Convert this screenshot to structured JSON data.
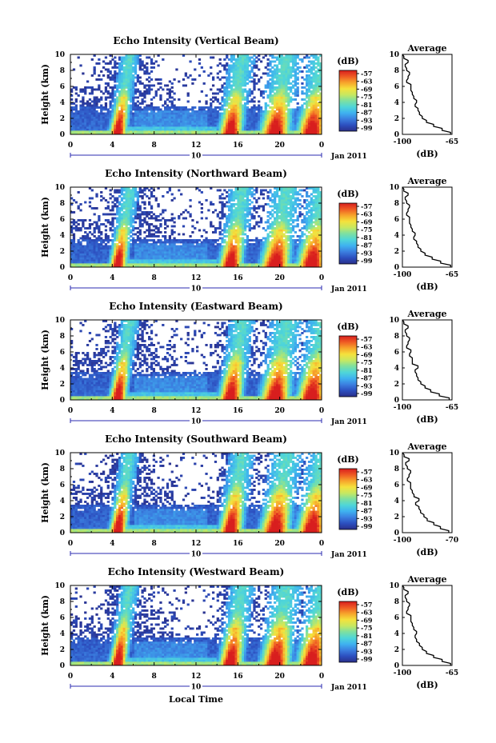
{
  "figure": {
    "x_axis_title": "Local Time",
    "date_label": "Jan 2011",
    "day_label": "10",
    "profile_panel_title": "Average",
    "profile_xlabel": "(dB)",
    "colorbar_unit": "(dB)",
    "colorbar_ticks": [
      "-57",
      "-63",
      "-69",
      "-75",
      "-81",
      "-87",
      "-93",
      "-99"
    ],
    "colorbar_colors": [
      "#2a2f8a",
      "#2c4fbf",
      "#3b7fe0",
      "#3fb2f0",
      "#4fd6d8",
      "#7ee0a0",
      "#c8e860",
      "#f5e13c",
      "#f7a42b",
      "#ef5a24",
      "#d81e1e"
    ]
  },
  "chart_data": [
    {
      "type": "heatmap",
      "title": "Echo Intensity (Vertical Beam)",
      "xlabel": "",
      "ylabel": "Height (km)",
      "x_ticks": [
        "0",
        "4",
        "8",
        "12",
        "16",
        "20",
        "0"
      ],
      "y_ticks": [
        "0",
        "2",
        "4",
        "6",
        "8",
        "10"
      ],
      "xlim": [
        0,
        24
      ],
      "ylim": [
        0,
        10
      ],
      "intense_periods_hours": [
        [
          4,
          5
        ],
        [
          14.5,
          16
        ],
        [
          18.5,
          20.5
        ],
        [
          22,
          24
        ]
      ],
      "profile": {
        "xlabel": "(dB)",
        "x_ticks": [
          "-100",
          "-65"
        ],
        "xlim": [
          -100,
          -65
        ],
        "ylim": [
          0,
          10
        ],
        "height_km": [
          0,
          0.5,
          1,
          1.5,
          2,
          2.5,
          3,
          3.5,
          4,
          4.5,
          5,
          5.5,
          6,
          6.5,
          7,
          7.5,
          8,
          8.5,
          9,
          9.5,
          10
        ],
        "db": [
          -66,
          -72,
          -78,
          -83,
          -86,
          -88,
          -89,
          -91,
          -90,
          -92,
          -93,
          -94,
          -94,
          -97,
          -96,
          -95,
          -97,
          -98,
          -96,
          -99,
          -100
        ]
      }
    },
    {
      "type": "heatmap",
      "title": "Echo Intensity (Northward Beam)",
      "xlabel": "",
      "ylabel": "Height (km)",
      "x_ticks": [
        "0",
        "4",
        "8",
        "12",
        "16",
        "20",
        "0"
      ],
      "y_ticks": [
        "0",
        "2",
        "4",
        "6",
        "8",
        "10"
      ],
      "xlim": [
        0,
        24
      ],
      "ylim": [
        0,
        10
      ],
      "intense_periods_hours": [
        [
          4,
          5
        ],
        [
          14.5,
          16
        ],
        [
          18.5,
          20.5
        ],
        [
          22,
          24
        ]
      ],
      "profile": {
        "xlabel": "(dB)",
        "x_ticks": [
          "-100",
          "-65"
        ],
        "xlim": [
          -100,
          -65
        ],
        "ylim": [
          0,
          10
        ],
        "height_km": [
          0,
          0.5,
          1,
          1.5,
          2,
          2.5,
          3,
          3.5,
          4,
          4.5,
          5,
          5.5,
          6,
          6.5,
          7,
          7.5,
          8,
          8.5,
          9,
          9.5,
          10
        ],
        "db": [
          -66,
          -73,
          -79,
          -84,
          -87,
          -89,
          -90,
          -92,
          -91,
          -93,
          -94,
          -95,
          -95,
          -97,
          -96,
          -95,
          -97,
          -98,
          -96,
          -99,
          -100
        ]
      }
    },
    {
      "type": "heatmap",
      "title": "Echo Intensity (Eastward Beam)",
      "xlabel": "",
      "ylabel": "Height (km)",
      "x_ticks": [
        "0",
        "4",
        "8",
        "12",
        "16",
        "20",
        "0"
      ],
      "y_ticks": [
        "0",
        "2",
        "4",
        "6",
        "8",
        "10"
      ],
      "xlim": [
        0,
        24
      ],
      "ylim": [
        0,
        10
      ],
      "intense_periods_hours": [
        [
          4,
          5
        ],
        [
          14.5,
          16
        ],
        [
          18.5,
          20.5
        ],
        [
          22,
          24
        ]
      ],
      "profile": {
        "xlabel": "(dB)",
        "x_ticks": [
          "-100",
          "-65"
        ],
        "xlim": [
          -100,
          -65
        ],
        "ylim": [
          0,
          10
        ],
        "height_km": [
          0,
          0.5,
          1,
          1.5,
          2,
          2.5,
          3,
          3.5,
          4,
          4.5,
          5,
          5.5,
          6,
          6.5,
          7,
          7.5,
          8,
          8.5,
          9,
          9.5,
          10
        ],
        "db": [
          -67,
          -74,
          -80,
          -84,
          -87,
          -89,
          -90,
          -91,
          -89,
          -93,
          -93,
          -95,
          -94,
          -97,
          -96,
          -95,
          -97,
          -98,
          -96,
          -99,
          -100
        ]
      }
    },
    {
      "type": "heatmap",
      "title": "Echo Intensity (Southward Beam)",
      "xlabel": "",
      "ylabel": "Height (km)",
      "x_ticks": [
        "0",
        "4",
        "8",
        "12",
        "16",
        "20",
        "0"
      ],
      "y_ticks": [
        "0",
        "2",
        "4",
        "6",
        "8",
        "10"
      ],
      "xlim": [
        0,
        24
      ],
      "ylim": [
        0,
        10
      ],
      "intense_periods_hours": [
        [
          4,
          5
        ],
        [
          14.5,
          16
        ],
        [
          18.5,
          20.5
        ],
        [
          22,
          24
        ]
      ],
      "profile": {
        "xlabel": "(dB)",
        "x_ticks": [
          "-100",
          "-70"
        ],
        "xlim": [
          -100,
          -70
        ],
        "ylim": [
          0,
          10
        ],
        "height_km": [
          0,
          0.5,
          1,
          1.5,
          2,
          2.5,
          3,
          3.5,
          4,
          4.5,
          5,
          5.5,
          6,
          6.5,
          7,
          7.5,
          8,
          8.5,
          9,
          9.5,
          10
        ],
        "db": [
          -72,
          -77,
          -81,
          -85,
          -87,
          -89,
          -90,
          -92,
          -90,
          -93,
          -94,
          -95,
          -95,
          -97,
          -96,
          -95,
          -97,
          -98,
          -96,
          -99,
          -100
        ]
      }
    },
    {
      "type": "heatmap",
      "title": "Echo Intensity (Westward Beam)",
      "xlabel": "Local Time",
      "ylabel": "Height (km)",
      "x_ticks": [
        "0",
        "4",
        "8",
        "12",
        "16",
        "20",
        "0"
      ],
      "y_ticks": [
        "0",
        "2",
        "4",
        "6",
        "8",
        "10"
      ],
      "xlim": [
        0,
        24
      ],
      "ylim": [
        0,
        10
      ],
      "intense_periods_hours": [
        [
          4,
          5
        ],
        [
          14.5,
          16
        ],
        [
          18.5,
          20.5
        ],
        [
          22,
          24
        ]
      ],
      "profile": {
        "xlabel": "(dB)",
        "x_ticks": [
          "-100",
          "-65"
        ],
        "xlim": [
          -100,
          -65
        ],
        "ylim": [
          0,
          10
        ],
        "height_km": [
          0,
          0.5,
          1,
          1.5,
          2,
          2.5,
          3,
          3.5,
          4,
          4.5,
          5,
          5.5,
          6,
          6.5,
          7,
          7.5,
          8,
          8.5,
          9,
          9.5,
          10
        ],
        "db": [
          -66,
          -72,
          -78,
          -83,
          -86,
          -88,
          -90,
          -91,
          -90,
          -92,
          -93,
          -94,
          -94,
          -97,
          -96,
          -95,
          -97,
          -98,
          -96,
          -99,
          -100
        ]
      }
    }
  ]
}
